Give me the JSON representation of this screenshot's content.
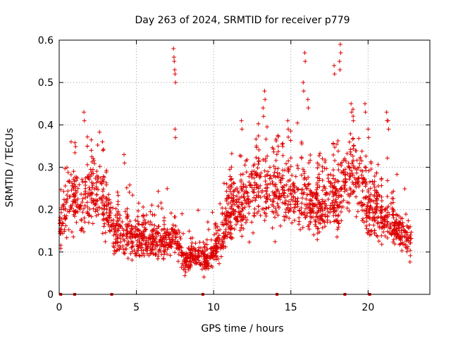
{
  "chart_data": {
    "type": "scatter",
    "title": "Day 263 of 2024, SRMTID for receiver p779",
    "xlabel": "GPS time / hours",
    "ylabel": "SRMTID / TECUs",
    "xlim": [
      0,
      24
    ],
    "ylim": [
      0,
      0.6
    ],
    "x_ticks": [
      0,
      5,
      10,
      15,
      20
    ],
    "x_tick_labels": [
      "0",
      "5",
      "10",
      "15",
      "20"
    ],
    "y_ticks": [
      0,
      0.1,
      0.2,
      0.3,
      0.4,
      0.5,
      0.6
    ],
    "y_tick_labels": [
      "0",
      "0.1",
      "0.2",
      "0.3",
      "0.4",
      "0.5",
      "0.6"
    ],
    "grid": true,
    "marker": "+",
    "color": "#dd0000",
    "series": [
      {
        "name": "SRMTID",
        "trend": [
          [
            0.0,
            0.15
          ],
          [
            0.5,
            0.22
          ],
          [
            1.0,
            0.23
          ],
          [
            1.5,
            0.2
          ],
          [
            2.0,
            0.25
          ],
          [
            2.5,
            0.24
          ],
          [
            3.0,
            0.2
          ],
          [
            3.5,
            0.15
          ],
          [
            4.0,
            0.14
          ],
          [
            5.0,
            0.13
          ],
          [
            6.0,
            0.13
          ],
          [
            7.0,
            0.12
          ],
          [
            7.5,
            0.14
          ],
          [
            8.0,
            0.08
          ],
          [
            9.0,
            0.09
          ],
          [
            9.5,
            0.08
          ],
          [
            10.0,
            0.1
          ],
          [
            10.5,
            0.13
          ],
          [
            11.0,
            0.18
          ],
          [
            12.0,
            0.22
          ],
          [
            13.0,
            0.26
          ],
          [
            14.0,
            0.24
          ],
          [
            15.0,
            0.24
          ],
          [
            16.0,
            0.22
          ],
          [
            17.0,
            0.2
          ],
          [
            18.0,
            0.23
          ],
          [
            19.0,
            0.28
          ],
          [
            19.5,
            0.26
          ],
          [
            20.0,
            0.2
          ],
          [
            21.0,
            0.17
          ],
          [
            22.0,
            0.15
          ],
          [
            22.8,
            0.12
          ]
        ],
        "spikes": [
          [
            1.6,
            0.43
          ],
          [
            2.8,
            0.36
          ],
          [
            4.2,
            0.33
          ],
          [
            7.4,
            0.58
          ],
          [
            7.45,
            0.55
          ],
          [
            7.5,
            0.52
          ],
          [
            7.5,
            0.39
          ],
          [
            11.8,
            0.41
          ],
          [
            13.3,
            0.48
          ],
          [
            13.2,
            0.44
          ],
          [
            14.8,
            0.41
          ],
          [
            15.9,
            0.57
          ],
          [
            15.8,
            0.5
          ],
          [
            16.1,
            0.46
          ],
          [
            17.8,
            0.54
          ],
          [
            18.2,
            0.59
          ],
          [
            18.15,
            0.55
          ],
          [
            18.9,
            0.45
          ],
          [
            19.8,
            0.45
          ],
          [
            20.0,
            0.39
          ],
          [
            21.2,
            0.43
          ],
          [
            21.3,
            0.41
          ]
        ],
        "baseline_markers": [
          0.1,
          1.0,
          3.4,
          9.3,
          14.1,
          18.5,
          20.1
        ]
      }
    ]
  }
}
